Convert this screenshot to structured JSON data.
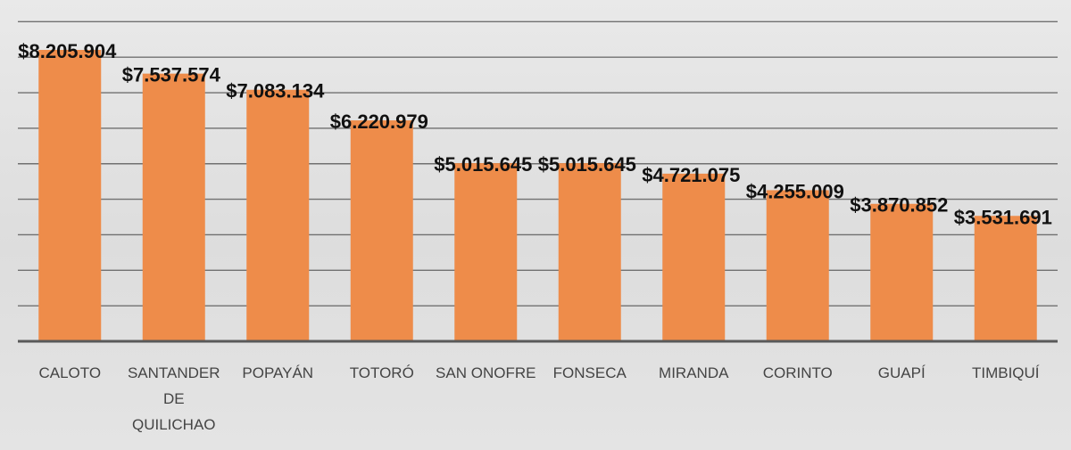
{
  "chart_data": {
    "type": "bar",
    "title": "",
    "xlabel": "",
    "ylabel": "",
    "categories": [
      "CALOTO",
      "SANTANDER DE QUILICHAO",
      "POPAYÁN",
      "TOTORÓ",
      "SAN ONOFRE",
      "FONSECA",
      "MIRANDA",
      "CORINTO",
      "GUAPÍ",
      "TIMBIQUÍ"
    ],
    "values": [
      8205904,
      7537574,
      7083134,
      6220979,
      5015645,
      5015645,
      4721075,
      4255009,
      3870852,
      3531691
    ],
    "data_labels": [
      "$8.205.904",
      "$7.537.574",
      "$7.083.134",
      "$6.220.979",
      "$5.015.645",
      "$5.015.645",
      "$4.721.075",
      "$4.255.009",
      "$3.870.852",
      "$3.531.691"
    ],
    "ylim": [
      0,
      9000000
    ],
    "grid": true,
    "legend": "none",
    "colors": {
      "bar": "#ee8c4a",
      "grid": "#707070",
      "axis": "#595959",
      "text": "#111111",
      "tick_text": "#444444"
    }
  }
}
